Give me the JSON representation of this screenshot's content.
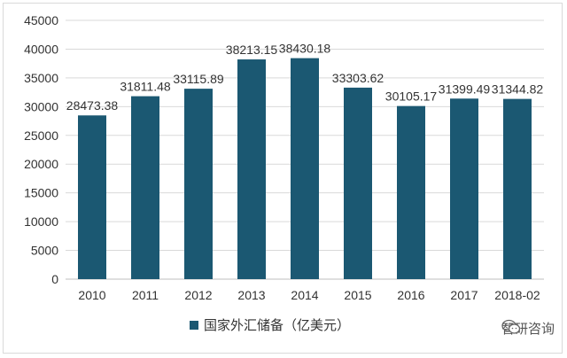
{
  "chart_data": {
    "type": "bar",
    "categories": [
      "2010",
      "2011",
      "2012",
      "2013",
      "2014",
      "2015",
      "2016",
      "2017",
      "2018-02"
    ],
    "series": [
      {
        "name": "国家外汇储备（亿美元）",
        "values": [
          28473.38,
          31811.48,
          33115.89,
          38213.15,
          38430.18,
          33303.62,
          30105.17,
          31399.49,
          31344.82
        ]
      }
    ],
    "value_labels": [
      "28473.38",
      "31811.48",
      "33115.89",
      "38213.15",
      "38430.18",
      "33303.62",
      "30105.17",
      "31399.49",
      "31344.82"
    ],
    "ylim": [
      0,
      45000
    ],
    "yticks": [
      "0",
      "5000",
      "10000",
      "15000",
      "20000",
      "25000",
      "30000",
      "35000",
      "40000",
      "45000"
    ],
    "grid": true,
    "legend_position": "bottom",
    "bar_color": "#1b5872"
  },
  "watermark": {
    "text": "智研咨询",
    "icon": "wechat-icon"
  }
}
